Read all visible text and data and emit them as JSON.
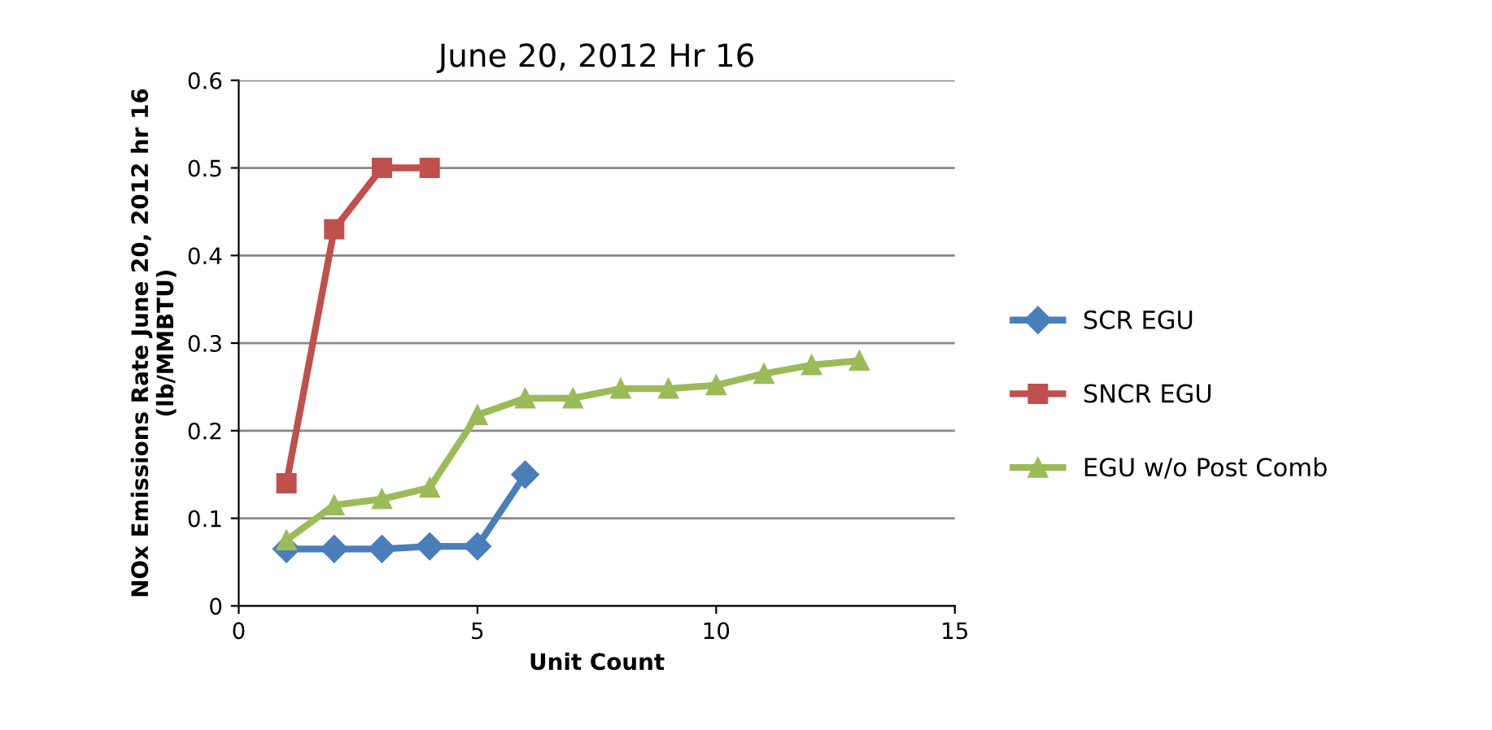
{
  "chart_data": {
    "type": "line",
    "title": "June 20, 2012 Hr 16",
    "xlabel": "Unit Count",
    "ylabel": "NOx Emissions Rate June 20, 2012 hr 16\n(lb/MMBTU)",
    "xlim": [
      0,
      15
    ],
    "xticks": [
      0,
      5,
      10,
      15
    ],
    "ylim": [
      0,
      0.6
    ],
    "yticks": [
      0,
      0.1,
      0.2,
      0.3,
      0.4,
      0.5,
      0.6
    ],
    "grid": "y",
    "legend": "right",
    "series": [
      {
        "name": "SCR EGU",
        "color": "#4a7ebb",
        "marker": "diamond",
        "x": [
          1,
          2,
          3,
          4,
          5,
          6
        ],
        "values": [
          0.065,
          0.065,
          0.065,
          0.068,
          0.068,
          0.15
        ]
      },
      {
        "name": "SNCR EGU",
        "color": "#c0504d",
        "marker": "square",
        "x": [
          1,
          2,
          3,
          4
        ],
        "values": [
          0.14,
          0.43,
          0.5,
          0.5
        ]
      },
      {
        "name": "EGU w/o Post Comb",
        "color": "#9bbb59",
        "marker": "triangle",
        "x": [
          1,
          2,
          3,
          4,
          5,
          6,
          7,
          8,
          9,
          10,
          11,
          12,
          13
        ],
        "values": [
          0.075,
          0.115,
          0.122,
          0.135,
          0.218,
          0.237,
          0.237,
          0.248,
          0.248,
          0.252,
          0.265,
          0.275,
          0.28
        ]
      }
    ]
  }
}
